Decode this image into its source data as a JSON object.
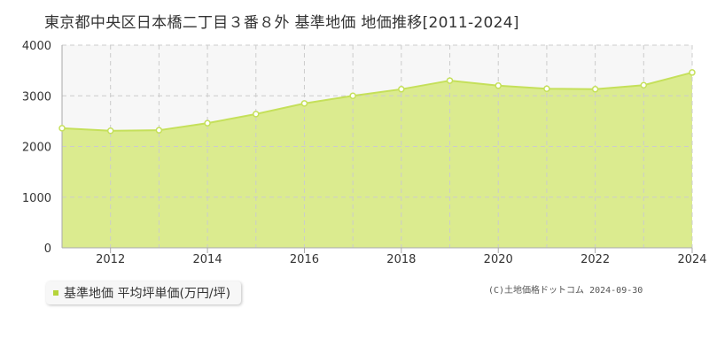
{
  "title": "東京都中央区日本橋二丁目３番８外 基準地価 地価推移[2011-2024]",
  "legend": {
    "label": "基準地価 平均坪単価(万円/坪)"
  },
  "credit": "(C)土地価格ドットコム 2024-09-30",
  "colors": {
    "area_fill": "#dbeb8f",
    "line": "#c5e05a",
    "upper_band": "#f7f7f7",
    "grid": "#cccccc",
    "point_fill": "#ffffff",
    "legend_marker": "#b5d43a"
  },
  "chart_data": {
    "type": "area",
    "title": "東京都中央区日本橋二丁目３番８外 基準地価 地価推移[2011-2024]",
    "x": [
      2011,
      2012,
      2013,
      2014,
      2015,
      2016,
      2017,
      2018,
      2019,
      2020,
      2021,
      2022,
      2023,
      2024
    ],
    "series": [
      {
        "name": "基準地価 平均坪単価(万円/坪)",
        "values": [
          2360,
          2310,
          2320,
          2460,
          2640,
          2850,
          3000,
          3130,
          3300,
          3200,
          3140,
          3130,
          3210,
          3460
        ]
      }
    ],
    "xlim": [
      2011,
      2024
    ],
    "ylim": [
      0,
      4000
    ],
    "yticks": [
      0,
      1000,
      2000,
      3000,
      4000
    ],
    "xticks": [
      2012,
      2014,
      2016,
      2018,
      2020,
      2022,
      2024
    ],
    "grid": true,
    "legend_position": "bottom-left"
  }
}
